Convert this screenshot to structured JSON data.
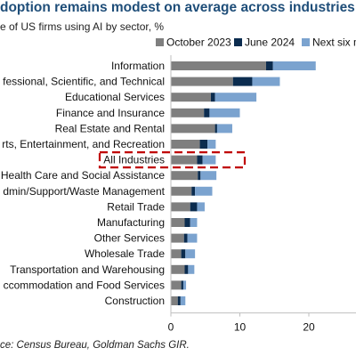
{
  "title": "doption remains modest on average across industries",
  "subtitle": "e of US firms using AI by sector, %",
  "source": "ce: Census Bureau, Goldman Sachs GIR.",
  "chart_data": {
    "type": "bar",
    "orientation": "horizontal",
    "stacked": true,
    "categories": [
      "Information",
      "fessional, Scientific, and Technical",
      "Educational Services",
      "Finance and Insurance",
      "Real Estate and Rental",
      "rts, Entertainment, and Recreation",
      "All Industries",
      "Health Care and Social Assistance",
      "dmin/Support/Waste Management",
      "Retail Trade",
      "Manufacturing",
      "Other Services",
      "Wholesale Trade",
      "Transportation and Warehousing",
      "ccommodation and Food Services",
      "Construction"
    ],
    "series": [
      {
        "name": "October 2023",
        "color": "#7f7f7f",
        "values": [
          13.8,
          9.0,
          5.8,
          4.8,
          6.4,
          4.2,
          3.8,
          3.9,
          3.0,
          2.8,
          2.0,
          1.9,
          1.5,
          2.0,
          1.5,
          1.0
        ]
      },
      {
        "name": "June 2024",
        "color": "#0b2c4f",
        "values": [
          1.0,
          2.8,
          0.6,
          0.8,
          0.3,
          1.1,
          0.8,
          0.4,
          0.5,
          1.0,
          0.8,
          0.5,
          0.6,
          0.5,
          0.3,
          0.4
        ]
      },
      {
        "name": "Next six m",
        "color": "#7ba3cf",
        "values": [
          6.2,
          4.0,
          6.0,
          4.4,
          2.2,
          1.2,
          1.9,
          2.3,
          2.5,
          1.1,
          1.0,
          1.4,
          1.4,
          0.9,
          0.4,
          0.7
        ]
      }
    ],
    "x_ticks": [
      0,
      10,
      20
    ],
    "xlim": [
      0,
      26
    ],
    "highlight_category": "All Industries",
    "legend_position": "top",
    "grid": false
  }
}
